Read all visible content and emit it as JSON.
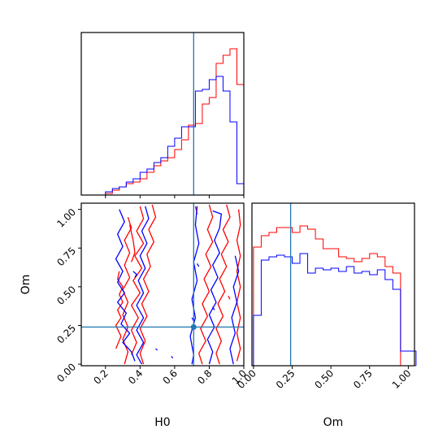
{
  "chart_data": {
    "type": "corner",
    "parameters": [
      "H0",
      "Om"
    ],
    "truth": {
      "H0": 0.71,
      "Om": 0.24
    },
    "colors": {
      "series_a": "#ff0000",
      "series_b": "#0000ff",
      "truth": "#1f77b4"
    },
    "axes": {
      "H0": {
        "xlim": [
          0.06,
          1.0
        ],
        "ticks": [
          "0.2",
          "0.4",
          "0.6",
          "0.8",
          "1.0"
        ],
        "label": "H0"
      },
      "Om": {
        "xlim": [
          -0.01,
          1.04
        ],
        "ticks": [
          "0.00",
          "0.25",
          "0.50",
          "0.75",
          "1.00"
        ],
        "label": "Om"
      },
      "joint_x": {
        "xlim": [
          0.06,
          1.0
        ],
        "label": "H0"
      },
      "joint_y": {
        "ylim": [
          -0.01,
          1.04
        ],
        "ticks": [
          "0.00",
          "0.25",
          "0.50",
          "0.75",
          "1.00"
        ],
        "label": "Om"
      }
    },
    "hist_H0": {
      "bin_edges": [
        0.2,
        0.24,
        0.28,
        0.32,
        0.36,
        0.4,
        0.44,
        0.48,
        0.52,
        0.56,
        0.6,
        0.64,
        0.68,
        0.72,
        0.76,
        0.8,
        0.84,
        0.88,
        0.92,
        0.96,
        1.0
      ],
      "ylim": [
        0,
        1.0
      ],
      "series": [
        {
          "name": "",
          "color": "#ff0000",
          "values": [
            0.01,
            0.03,
            0.05,
            0.07,
            0.08,
            0.1,
            0.14,
            0.18,
            0.21,
            0.23,
            0.28,
            0.34,
            0.43,
            0.44,
            0.56,
            0.6,
            0.81,
            0.86,
            0.9,
            0.68
          ]
        },
        {
          "name": "",
          "color": "#0000ff",
          "values": [
            0.02,
            0.04,
            0.05,
            0.08,
            0.1,
            0.14,
            0.16,
            0.2,
            0.23,
            0.3,
            0.35,
            0.42,
            0.42,
            0.64,
            0.65,
            0.71,
            0.73,
            0.64,
            0.45,
            0.07
          ]
        }
      ]
    },
    "hist_Om": {
      "bin_edges": [
        0.0,
        0.05,
        0.1,
        0.15,
        0.2,
        0.25,
        0.3,
        0.35,
        0.4,
        0.45,
        0.5,
        0.55,
        0.6,
        0.65,
        0.7,
        0.75,
        0.8,
        0.85,
        0.9,
        0.95,
        1.0,
        1.05
      ],
      "ylim": [
        0,
        1.0
      ],
      "series": [
        {
          "name": "",
          "color": "#ff0000",
          "values": [
            0.73,
            0.8,
            0.82,
            0.85,
            0.85,
            0.82,
            0.86,
            0.84,
            0.78,
            0.72,
            0.72,
            0.67,
            0.66,
            0.64,
            0.66,
            0.69,
            0.67,
            0.61,
            0.57,
            0.0,
            0.0
          ]
        },
        {
          "name": "",
          "color": "#0000ff",
          "values": [
            0.31,
            0.65,
            0.67,
            0.68,
            0.67,
            0.63,
            0.69,
            0.57,
            0.6,
            0.59,
            0.6,
            0.58,
            0.61,
            0.57,
            0.58,
            0.56,
            0.59,
            0.53,
            0.47,
            0.09,
            0.09
          ]
        }
      ]
    },
    "joint_contours": {
      "series_a": [
        [
          [
            0.28,
            0.6
          ],
          [
            0.27,
            0.55
          ],
          [
            0.3,
            0.5
          ],
          [
            0.28,
            0.45
          ],
          [
            0.3,
            0.4
          ],
          [
            0.27,
            0.35
          ],
          [
            0.29,
            0.3
          ],
          [
            0.26,
            0.25
          ],
          [
            0.29,
            0.18
          ],
          [
            0.26,
            0.1
          ]
        ],
        [
          [
            0.33,
            0.95
          ],
          [
            0.35,
            0.88
          ],
          [
            0.31,
            0.8
          ],
          [
            0.34,
            0.72
          ],
          [
            0.31,
            0.64
          ],
          [
            0.34,
            0.56
          ],
          [
            0.3,
            0.48
          ],
          [
            0.33,
            0.4
          ],
          [
            0.3,
            0.32
          ],
          [
            0.33,
            0.24
          ],
          [
            0.3,
            0.16
          ],
          [
            0.33,
            0.08
          ],
          [
            0.31,
            0.0
          ]
        ],
        [
          [
            0.4,
            1.02
          ],
          [
            0.42,
            0.94
          ],
          [
            0.38,
            0.86
          ],
          [
            0.42,
            0.78
          ],
          [
            0.37,
            0.7
          ],
          [
            0.41,
            0.62
          ],
          [
            0.36,
            0.54
          ],
          [
            0.4,
            0.46
          ],
          [
            0.35,
            0.38
          ],
          [
            0.39,
            0.3
          ],
          [
            0.35,
            0.22
          ],
          [
            0.38,
            0.14
          ],
          [
            0.35,
            0.06
          ]
        ],
        [
          [
            0.47,
            1.03
          ],
          [
            0.49,
            0.95
          ],
          [
            0.45,
            0.87
          ],
          [
            0.48,
            0.79
          ],
          [
            0.44,
            0.71
          ],
          [
            0.46,
            0.63
          ],
          [
            0.42,
            0.55
          ],
          [
            0.45,
            0.47
          ],
          [
            0.41,
            0.39
          ],
          [
            0.44,
            0.31
          ],
          [
            0.4,
            0.23
          ],
          [
            0.43,
            0.15
          ],
          [
            0.4,
            0.07
          ],
          [
            0.42,
            0.0
          ]
        ],
        [
          [
            0.34,
            0.9
          ],
          [
            0.36,
            0.8
          ],
          [
            0.37,
            0.72
          ],
          [
            0.35,
            0.66
          ]
        ],
        [
          [
            0.8,
            1.03
          ],
          [
            0.82,
            0.95
          ],
          [
            0.79,
            0.87
          ],
          [
            0.82,
            0.79
          ],
          [
            0.78,
            0.71
          ],
          [
            0.81,
            0.63
          ],
          [
            0.77,
            0.55
          ],
          [
            0.8,
            0.47
          ],
          [
            0.76,
            0.39
          ],
          [
            0.79,
            0.31
          ],
          [
            0.75,
            0.23
          ],
          [
            0.78,
            0.15
          ],
          [
            0.74,
            0.07
          ],
          [
            0.76,
            0.0
          ]
        ],
        [
          [
            0.9,
            1.03
          ],
          [
            0.92,
            0.95
          ],
          [
            0.88,
            0.87
          ],
          [
            0.91,
            0.79
          ],
          [
            0.87,
            0.71
          ],
          [
            0.9,
            0.63
          ],
          [
            0.86,
            0.55
          ],
          [
            0.89,
            0.47
          ],
          [
            0.85,
            0.39
          ],
          [
            0.88,
            0.31
          ],
          [
            0.84,
            0.23
          ],
          [
            0.87,
            0.15
          ],
          [
            0.84,
            0.07
          ],
          [
            0.86,
            0.0
          ]
        ],
        [
          [
            0.97,
            1.0
          ],
          [
            0.98,
            0.9
          ],
          [
            0.96,
            0.8
          ],
          [
            0.98,
            0.7
          ],
          [
            0.96,
            0.6
          ],
          [
            0.98,
            0.5
          ],
          [
            0.96,
            0.4
          ],
          [
            0.98,
            0.3
          ],
          [
            0.96,
            0.2
          ],
          [
            0.98,
            0.1
          ],
          [
            0.96,
            0.02
          ]
        ],
        [
          [
            0.72,
            1.02
          ],
          [
            0.73,
            0.97
          ]
        ],
        [
          [
            0.91,
            0.44
          ],
          [
            0.92,
            0.42
          ]
        ]
      ],
      "series_b": [
        [
          [
            0.28,
            1.0
          ],
          [
            0.31,
            0.92
          ],
          [
            0.27,
            0.84
          ],
          [
            0.3,
            0.76
          ],
          [
            0.26,
            0.68
          ],
          [
            0.3,
            0.6
          ],
          [
            0.27,
            0.53
          ],
          [
            0.31,
            0.46
          ],
          [
            0.27,
            0.4
          ],
          [
            0.32,
            0.33
          ],
          [
            0.29,
            0.26
          ],
          [
            0.34,
            0.2
          ],
          [
            0.3,
            0.14
          ],
          [
            0.35,
            0.08
          ],
          [
            0.37,
            0.02
          ]
        ],
        [
          [
            0.43,
            1.02
          ],
          [
            0.45,
            0.94
          ],
          [
            0.41,
            0.86
          ],
          [
            0.44,
            0.78
          ],
          [
            0.4,
            0.7
          ],
          [
            0.43,
            0.62
          ],
          [
            0.39,
            0.54
          ],
          [
            0.42,
            0.46
          ],
          [
            0.38,
            0.38
          ],
          [
            0.42,
            0.3
          ],
          [
            0.38,
            0.22
          ],
          [
            0.42,
            0.14
          ],
          [
            0.38,
            0.06
          ],
          [
            0.41,
            0.0
          ]
        ],
        [
          [
            0.73,
            1.02
          ],
          [
            0.72,
            0.9
          ],
          [
            0.74,
            0.78
          ],
          [
            0.71,
            0.66
          ],
          [
            0.73,
            0.54
          ],
          [
            0.7,
            0.42
          ],
          [
            0.72,
            0.3
          ],
          [
            0.69,
            0.18
          ],
          [
            0.71,
            0.06
          ],
          [
            0.7,
            0.0
          ]
        ],
        [
          [
            0.82,
            0.99
          ],
          [
            0.87,
            0.97
          ],
          [
            0.86,
            0.88
          ],
          [
            0.83,
            0.8
          ],
          [
            0.86,
            0.72
          ],
          [
            0.82,
            0.64
          ],
          [
            0.85,
            0.56
          ],
          [
            0.81,
            0.48
          ],
          [
            0.84,
            0.4
          ],
          [
            0.8,
            0.32
          ],
          [
            0.83,
            0.24
          ],
          [
            0.79,
            0.16
          ],
          [
            0.82,
            0.08
          ],
          [
            0.8,
            0.0
          ]
        ],
        [
          [
            0.95,
            0.7
          ],
          [
            0.97,
            0.6
          ],
          [
            0.94,
            0.5
          ],
          [
            0.96,
            0.4
          ],
          [
            0.93,
            0.3
          ],
          [
            0.95,
            0.2
          ],
          [
            0.92,
            0.1
          ],
          [
            0.94,
            0.0
          ]
        ],
        [
          [
            0.36,
            0.6
          ],
          [
            0.38,
            0.58
          ],
          [
            0.37,
            0.56
          ]
        ],
        [
          [
            0.7,
            0.3
          ],
          [
            0.71,
            0.28
          ]
        ],
        [
          [
            0.82,
            0.37
          ],
          [
            0.83,
            0.35
          ]
        ],
        [
          [
            0.49,
            0.1
          ],
          [
            0.5,
            0.09
          ]
        ],
        [
          [
            0.58,
            0.05
          ],
          [
            0.59,
            0.04
          ]
        ],
        [
          [
            0.73,
            0.65
          ],
          [
            0.74,
            0.63
          ]
        ]
      ]
    }
  }
}
